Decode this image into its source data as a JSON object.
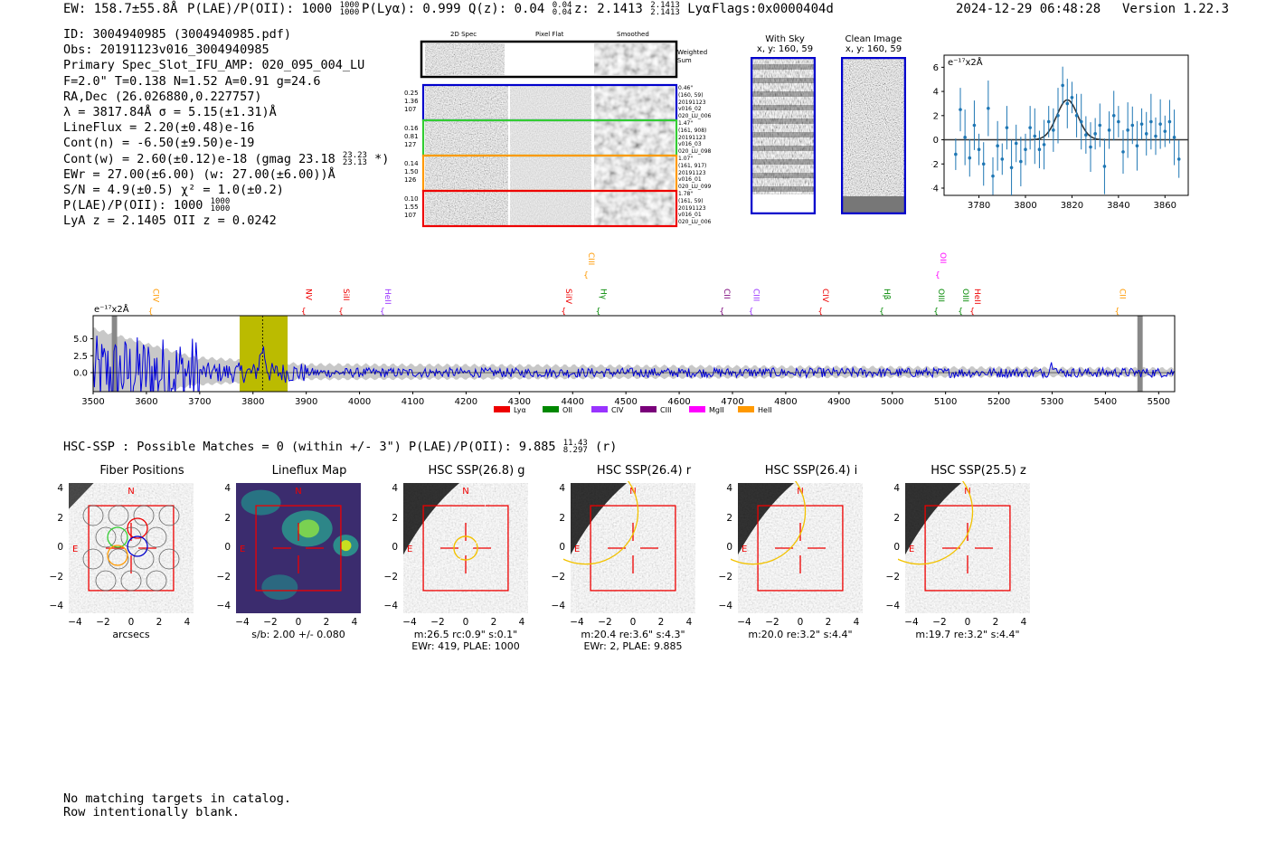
{
  "header": {
    "ew": "EW: 158.7±55.8Å",
    "plae_label": "P(LAE)/P(OII): 1000",
    "plae_hi": "1000",
    "plae_lo": "1000",
    "plya": "P(Lyα): 0.999",
    "qz_label": "Q(z): 0.04",
    "qz_hi": "0.04",
    "qz_lo": "0.04",
    "z_label": "z: 2.1413",
    "z_hi": "2.1413",
    "z_lo": "2.1413",
    "z_line": "Lyα",
    "flags": "Flags:0x0000404d",
    "datetime": "2024-12-29 06:48:28",
    "version": "Version 1.22.3"
  },
  "info": {
    "id": "ID: 3004940985 (3004940985.pdf)",
    "obs": "Obs: 20191123v016_3004940985",
    "primary": "Primary Spec_Slot_IFU_AMP: 020_095_004_LU",
    "fparams": "F=2.0\"  T=0.138  N=1.52  A=0.91  g=24.6",
    "radec": "RA,Dec (26.026880,0.227757)",
    "lambda": "λ = 3817.84Å  σ = 5.15(±1.31)Å",
    "lineflux": "LineFlux = 2.20(±0.48)e-16",
    "contn": "Cont(n) = -6.50(±9.50)e-19",
    "contw": "Cont(w) = 2.60(±0.12)e-18 (gmag 23.18",
    "contw_hi": "23.23",
    "contw_lo": "23.13",
    "contw_end": "*)",
    "ewr": "EWr = 27.00(±6.00) (w: 27.00(±6.00))Å",
    "sn": "S/N = 4.9(±0.5)  χ² = 1.0(±0.2)",
    "plae": "P(LAE)/P(OII): 1000",
    "plae_hi": "1000",
    "plae_lo": "1000",
    "lya": "LyA z = 2.1405  OII z = 0.0242"
  },
  "spec2d": {
    "col_titles": [
      "2D Spec",
      "Pixel Flat",
      "Smoothed"
    ],
    "weighted_label": "Weighted Sum",
    "rows": [
      {
        "left": [
          "0.25",
          "1.36",
          "107"
        ],
        "right": [
          "0.46\"",
          "(160, 59)",
          "20191123",
          "v016_02",
          "020_LU_006"
        ],
        "color": "#0000cc"
      },
      {
        "left": [
          "0.16",
          "0.81",
          "127"
        ],
        "right": [
          "1.47\"",
          "(161, 908)",
          "20191123",
          "v016_03",
          "020_LU_098"
        ],
        "color": "#33cc33"
      },
      {
        "left": [
          "0.14",
          "1.50",
          "126"
        ],
        "right": [
          "1.07\"",
          "(161, 917)",
          "20191123",
          "v016_01",
          "020_LU_099"
        ],
        "color": "#ff9900"
      },
      {
        "left": [
          "0.10",
          "1.55",
          "107"
        ],
        "right": [
          "1.78\"",
          "(161, 59)",
          "20191123",
          "v016_01",
          "020_LU_006"
        ],
        "color": "#ee0000"
      }
    ]
  },
  "skycuts": {
    "with_sky_title": "With Sky",
    "with_sky_xy": "x, y: 160, 59",
    "clean_title": "Clean Image",
    "clean_xy": "x, y: 160, 59"
  },
  "zoom_fit": {
    "unit": "e⁻¹⁷x2Å",
    "xticks": [
      "3780",
      "3800",
      "3820",
      "3840",
      "3860"
    ],
    "yticks": [
      "6",
      "4",
      "2",
      "0",
      "−2",
      "−4"
    ],
    "x_range": [
      3765,
      3870
    ],
    "y_range": [
      -4.6,
      7.0
    ],
    "points_x": [
      3770,
      3772,
      3774,
      3776,
      3778,
      3780,
      3782,
      3784,
      3786,
      3788,
      3790,
      3792,
      3794,
      3796,
      3798,
      3800,
      3802,
      3804,
      3806,
      3808,
      3810,
      3812,
      3814,
      3816,
      3818,
      3820,
      3822,
      3824,
      3826,
      3828,
      3830,
      3832,
      3834,
      3836,
      3838,
      3840,
      3842,
      3844,
      3846,
      3848,
      3850,
      3852,
      3854,
      3856,
      3858,
      3860,
      3862,
      3864,
      3866
    ],
    "points_y": [
      -1.2,
      2.5,
      0.2,
      -1.5,
      1.2,
      -0.8,
      -2.0,
      2.6,
      -3.0,
      -0.5,
      -1.6,
      1.0,
      -2.3,
      -0.3,
      -1.8,
      -0.8,
      1.0,
      0.3,
      -0.8,
      -0.4,
      1.5,
      0.8,
      2.0,
      4.5,
      3.0,
      3.5,
      2.0,
      1.5,
      0.4,
      -0.6,
      0.5,
      1.2,
      -2.2,
      0.8,
      2.0,
      1.5,
      -1.0,
      0.8,
      1.2,
      -0.5,
      1.3,
      0.5,
      1.5,
      0.3,
      1.3,
      0.7,
      1.5,
      0.2,
      -1.6
    ],
    "gauss": {
      "amp": 3.3,
      "center": 3818,
      "sigma": 4.5
    }
  },
  "spectrum": {
    "unit": "e⁻¹⁷x2Å",
    "xticks": [
      "3500",
      "3600",
      "3700",
      "3800",
      "3900",
      "4000",
      "4100",
      "4200",
      "4300",
      "4400",
      "4500",
      "4600",
      "4700",
      "4800",
      "4900",
      "5000",
      "5100",
      "5200",
      "5300",
      "5400",
      "5500"
    ],
    "yticks": [
      "5.0",
      "2.5",
      "0.0"
    ],
    "x_range": [
      3500,
      5530
    ],
    "y_range": [
      -2.8,
      8.4
    ],
    "highlight": [
      3775,
      3865
    ],
    "markers": [
      {
        "name": "CIV",
        "wl": 3608,
        "color": "#ff9900",
        "row": 2
      },
      {
        "name": "NV",
        "wl": 3895,
        "color": "#ee0000",
        "row": 2
      },
      {
        "name": "SiII",
        "wl": 3965,
        "color": "#ee0000",
        "row": 2
      },
      {
        "name": "HeII",
        "wl": 4043,
        "color": "#9933ff",
        "row": 2
      },
      {
        "name": "SiIV",
        "wl": 4383,
        "color": "#ee0000",
        "row": 2
      },
      {
        "name": "CIII",
        "wl": 4425,
        "color": "#ff9900",
        "row": 0
      },
      {
        "name": "Hγ",
        "wl": 4448,
        "color": "#008800",
        "row": 2
      },
      {
        "name": "CII",
        "wl": 4680,
        "color": "#7a007a",
        "row": 2
      },
      {
        "name": "CIII",
        "wl": 4735,
        "color": "#9933ff",
        "row": 2
      },
      {
        "name": "CIV",
        "wl": 4865,
        "color": "#ee0000",
        "row": 2
      },
      {
        "name": "Hβ",
        "wl": 4980,
        "color": "#008800",
        "row": 2
      },
      {
        "name": "OII",
        "wl": 5085,
        "color": "#ff00ff",
        "row": 0
      },
      {
        "name": "OIII",
        "wl": 5082,
        "color": "#008800",
        "row": 2
      },
      {
        "name": "OIII",
        "wl": 5128,
        "color": "#008800",
        "row": 2
      },
      {
        "name": "HeII",
        "wl": 5150,
        "color": "#ee0000",
        "row": 2
      },
      {
        "name": "CII",
        "wl": 5422,
        "color": "#ff9900",
        "row": 2
      }
    ],
    "legend": [
      {
        "label": "Lyα",
        "color": "#ee0000"
      },
      {
        "label": "OII",
        "color": "#008800"
      },
      {
        "label": "CIV",
        "color": "#9933ff"
      },
      {
        "label": "CIII",
        "color": "#7a007a"
      },
      {
        "label": "MgII",
        "color": "#ff00ff"
      },
      {
        "label": "HeII",
        "color": "#ff9900"
      }
    ]
  },
  "hsc": {
    "title": "HSC-SSP : Possible Matches = 0 (within +/- 3\")  P(LAE)/P(OII): 9.885",
    "plae_hi": "11.43",
    "plae_lo": "8.297",
    "band": "(r)"
  },
  "cutouts": [
    {
      "title": "Fiber Positions",
      "cap1": "arcsecs",
      "cap2": ""
    },
    {
      "title": "Lineflux Map",
      "cap1": "s/b: 2.00 +/- 0.080",
      "cap2": ""
    },
    {
      "title": "HSC SSP(26.8) g",
      "cap1": "m:26.5 rc:0.9\"  s:0.1\"",
      "cap2": "EWr: 419, PLAE: 1000"
    },
    {
      "title": "HSC SSP(26.4) r",
      "cap1": "m:20.4  re:3.6\"  s:4.3\"",
      "cap2": "EWr: 2, PLAE: 9.885"
    },
    {
      "title": "HSC SSP(26.4) i",
      "cap1": "m:20.0  re:3.2\"  s:4.4\"",
      "cap2": ""
    },
    {
      "title": "HSC SSP(25.5) z",
      "cap1": "m:19.7  re:3.2\"  s:4.4\"",
      "cap2": ""
    }
  ],
  "cutout_axes": {
    "ticks": [
      "4",
      "2",
      "0",
      "−2",
      "−4"
    ],
    "xticks": [
      "−4",
      "−2",
      "0",
      "2",
      "4"
    ],
    "n_label": "N",
    "e_label": "E"
  },
  "footer": {
    "line1": "No matching targets in catalog.",
    "line2": "Row intentionally blank."
  }
}
